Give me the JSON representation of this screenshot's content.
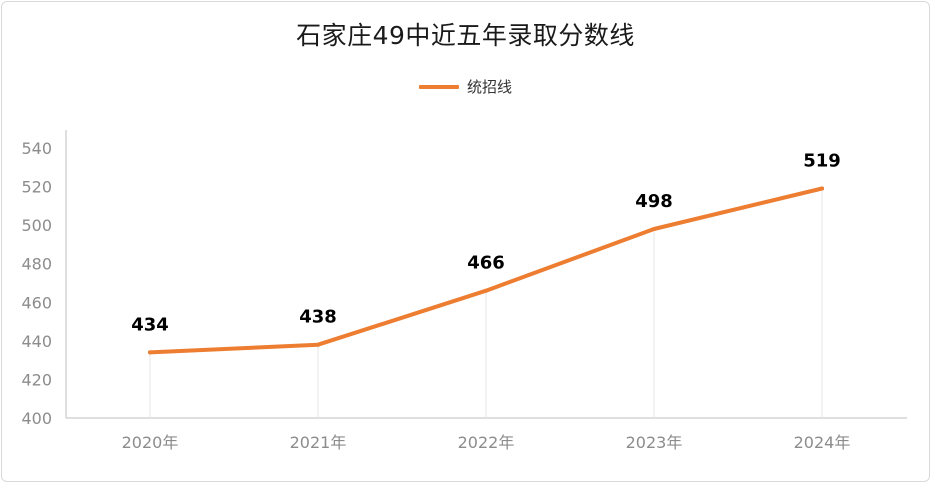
{
  "colors": {
    "series": "#ED7D31",
    "axis": "#bfbfbf",
    "grid": "#e6e6e6",
    "tick": "#8c8c8c"
  },
  "chart_data": {
    "type": "line",
    "title": "石家庄49中近五年录取分数线",
    "categories": [
      "2020年",
      "2021年",
      "2022年",
      "2023年",
      "2024年"
    ],
    "series": [
      {
        "name": "统招线",
        "values": [
          434,
          438,
          466,
          498,
          519
        ]
      }
    ],
    "ylim": [
      400,
      540
    ],
    "yticks": [
      400,
      420,
      440,
      460,
      480,
      500,
      520,
      540
    ],
    "data_labels": [
      "434",
      "438",
      "466",
      "498",
      "519"
    ],
    "legend_position": "top",
    "grid": "vertical lines at categories"
  }
}
